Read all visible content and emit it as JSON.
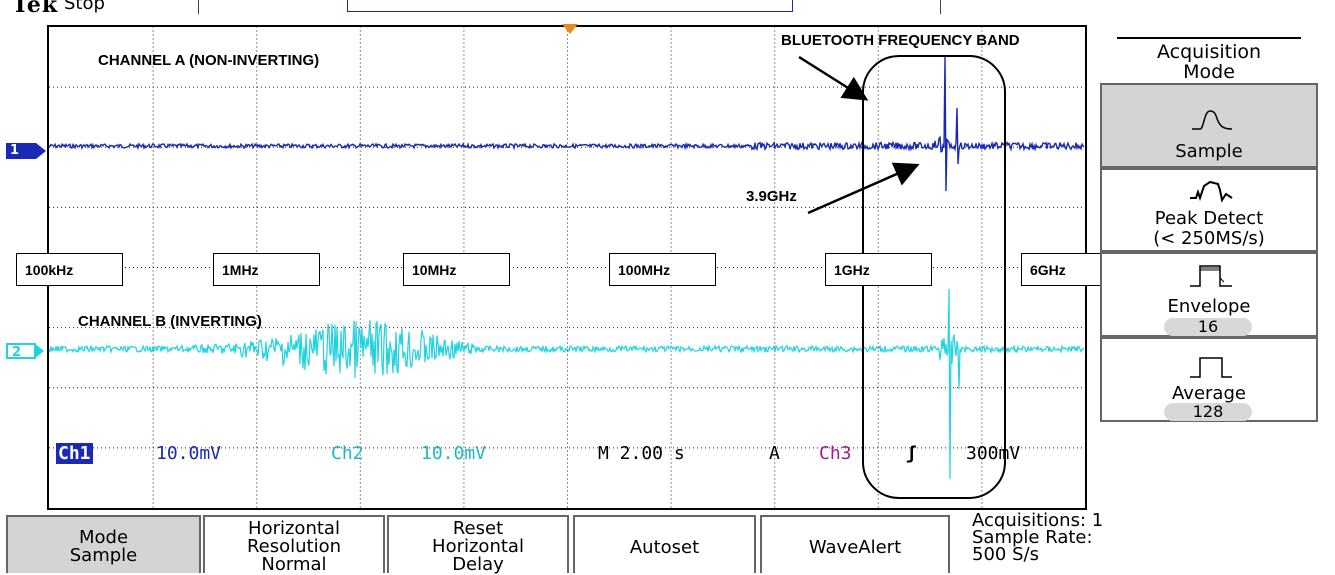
{
  "header": {
    "brand": "Tek",
    "run_state": "Stop"
  },
  "annotations": {
    "channel_a": "CHANNEL A (NON-INVERTING)",
    "channel_b": "CHANNEL B (INVERTING)",
    "bluetooth": "BLUETOOTH FREQUENCY BAND",
    "peak_freq": "3.9GHz"
  },
  "freq_markers": [
    "100kHz",
    "1MHz",
    "10MHz",
    "100MHz",
    "1GHz",
    "6GHz"
  ],
  "channels": {
    "ch1_marker": "1",
    "ch2_marker": "2",
    "ch1_color": "#1a2ab5",
    "ch2_color": "#1fd3e0"
  },
  "readout": {
    "ch1": "Ch1",
    "ch1_scale": "10.0mV",
    "ch2": "Ch2",
    "ch2_scale": "10.0mV",
    "timebase": "M 2.00 s",
    "trigger_mode": "A",
    "trigger_source": "Ch3",
    "trigger_slope": "ʃ",
    "trigger_level": "300mV"
  },
  "side_menu": {
    "title_line1": "Acquisition",
    "title_line2": "Mode",
    "items": [
      {
        "label": "Sample",
        "icon": "sample-waveform-icon",
        "selected": true
      },
      {
        "label": "Peak Detect",
        "sub": "(< 250MS/s)",
        "icon": "peak-detect-icon"
      },
      {
        "label": "Envelope",
        "value": "16",
        "icon": "envelope-icon"
      },
      {
        "label": "Average",
        "value": "128",
        "icon": "average-icon"
      }
    ]
  },
  "bottom_menu": [
    {
      "line1": "Mode",
      "line2": "Sample",
      "selected": true
    },
    {
      "line1": "Horizontal",
      "line2": "Resolution",
      "line3": "Normal"
    },
    {
      "line1": "Reset",
      "line2": "Horizontal",
      "line3": "Delay"
    },
    {
      "line1": "Autoset"
    },
    {
      "line1": "WaveAlert"
    }
  ],
  "status": {
    "acquisitions": "Acquisitions: 1",
    "sample_rate_label": "Sample Rate:",
    "sample_rate_value": "500 S/s"
  }
}
